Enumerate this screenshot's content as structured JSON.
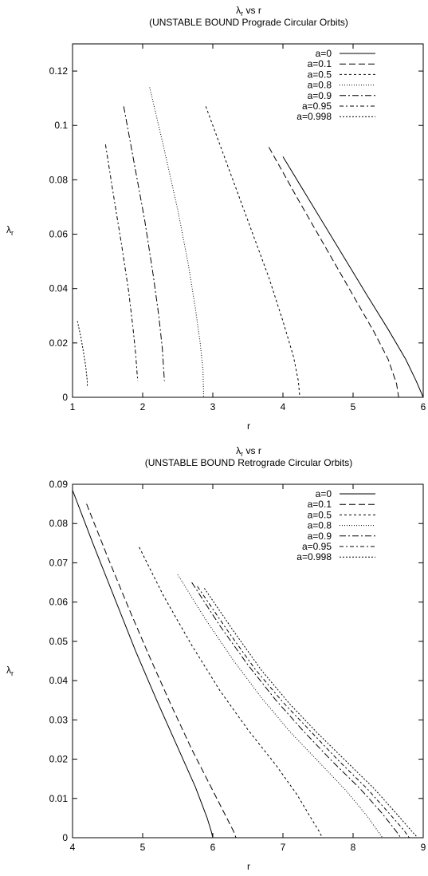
{
  "chart_data": [
    {
      "type": "line",
      "title_main": "λ",
      "title_sub": "r",
      "title_rest": " vs r",
      "subtitle": "(UNSTABLE BOUND Prograde Circular Orbits)",
      "xlabel": "r",
      "ylabel_main": "λ",
      "ylabel_sub": "r",
      "xlim": [
        1,
        6
      ],
      "ylim": [
        0,
        0.13
      ],
      "xticks": [
        1,
        2,
        3,
        4,
        5,
        6
      ],
      "yticks": [
        0,
        0.02,
        0.04,
        0.06,
        0.08,
        0.1,
        0.12
      ],
      "grid": false,
      "legend_position": "top-right",
      "series": [
        {
          "name": "a=0",
          "dash": "solid",
          "x": [
            4.0,
            4.4,
            4.8,
            5.2,
            5.5,
            5.75,
            5.9,
            6.0
          ],
          "y": [
            0.0885,
            0.0715,
            0.0545,
            0.0375,
            0.025,
            0.014,
            0.006,
            0.0
          ]
        },
        {
          "name": "a=0.1",
          "dash": "8,4",
          "x": [
            3.8,
            4.2,
            4.6,
            5.0,
            5.3,
            5.5,
            5.62,
            5.65
          ],
          "y": [
            0.092,
            0.0735,
            0.0555,
            0.0375,
            0.024,
            0.014,
            0.005,
            0.0
          ]
        },
        {
          "name": "a=0.5",
          "dash": "3,3",
          "x": [
            2.9,
            3.2,
            3.5,
            3.8,
            4.0,
            4.15,
            4.22,
            4.24
          ],
          "y": [
            0.107,
            0.086,
            0.065,
            0.044,
            0.028,
            0.015,
            0.006,
            0.0
          ]
        },
        {
          "name": "a=0.8",
          "dash": "1,2",
          "x": [
            2.1,
            2.3,
            2.5,
            2.65,
            2.75,
            2.82,
            2.86,
            2.87
          ],
          "y": [
            0.114,
            0.092,
            0.069,
            0.049,
            0.033,
            0.02,
            0.01,
            0.0
          ]
        },
        {
          "name": "a=0.9",
          "dash": "8,3,2,3",
          "x": [
            1.73,
            1.88,
            2.03,
            2.15,
            2.23,
            2.28,
            2.3,
            2.31
          ],
          "y": [
            0.107,
            0.086,
            0.065,
            0.045,
            0.03,
            0.018,
            0.01,
            0.006
          ]
        },
        {
          "name": "a=0.95",
          "dash": "5,3,2,3",
          "x": [
            1.47,
            1.58,
            1.7,
            1.8,
            1.86,
            1.9,
            1.92,
            1.93
          ],
          "y": [
            0.093,
            0.075,
            0.056,
            0.039,
            0.026,
            0.016,
            0.009,
            0.006
          ]
        },
        {
          "name": "a=0.998",
          "dash": "2,2",
          "x": [
            1.07,
            1.12,
            1.16,
            1.19,
            1.21,
            1.21
          ],
          "y": [
            0.028,
            0.022,
            0.016,
            0.011,
            0.006,
            0.004
          ]
        }
      ]
    },
    {
      "type": "line",
      "title_main": "λ",
      "title_sub": "r",
      "title_rest": " vs r",
      "subtitle": "(UNSTABLE BOUND Retrograde Circular Orbits)",
      "xlabel": "r",
      "ylabel_main": "λ",
      "ylabel_sub": "r",
      "xlim": [
        4,
        9
      ],
      "ylim": [
        0,
        0.09
      ],
      "xticks": [
        4,
        5,
        6,
        7,
        8,
        9
      ],
      "yticks": [
        0,
        0.01,
        0.02,
        0.03,
        0.04,
        0.05,
        0.06,
        0.07,
        0.08,
        0.09
      ],
      "grid": false,
      "legend_position": "top-right",
      "series": [
        {
          "name": "a=0",
          "dash": "solid",
          "x": [
            4.0,
            4.3,
            4.6,
            4.9,
            5.2,
            5.5,
            5.75,
            5.92,
            5.98,
            6.0
          ],
          "y": [
            0.0885,
            0.0745,
            0.061,
            0.0475,
            0.035,
            0.023,
            0.013,
            0.005,
            0.0015,
            0.0
          ]
        },
        {
          "name": "a=0.1",
          "dash": "8,4",
          "x": [
            4.2,
            4.5,
            4.8,
            5.1,
            5.4,
            5.7,
            6.0,
            6.2,
            6.3,
            6.33
          ],
          "y": [
            0.085,
            0.0715,
            0.0585,
            0.046,
            0.034,
            0.0225,
            0.012,
            0.005,
            0.0015,
            0.0
          ]
        },
        {
          "name": "a=0.5",
          "dash": "3,3",
          "x": [
            4.95,
            5.3,
            5.7,
            6.1,
            6.5,
            6.9,
            7.2,
            7.4,
            7.52,
            7.56
          ],
          "y": [
            0.074,
            0.0615,
            0.049,
            0.0375,
            0.0275,
            0.0185,
            0.011,
            0.005,
            0.0015,
            0.0
          ]
        },
        {
          "name": "a=0.8",
          "dash": "1,2",
          "x": [
            5.5,
            5.9,
            6.3,
            6.7,
            7.1,
            7.5,
            7.9,
            8.2,
            8.36,
            8.42
          ],
          "y": [
            0.067,
            0.0555,
            0.045,
            0.0355,
            0.027,
            0.0195,
            0.012,
            0.0055,
            0.0015,
            0.0
          ]
        },
        {
          "name": "a=0.9",
          "dash": "8,3,2,3",
          "x": [
            5.7,
            6.1,
            6.5,
            6.9,
            7.3,
            7.7,
            8.1,
            8.4,
            8.6,
            8.68
          ],
          "y": [
            0.065,
            0.054,
            0.044,
            0.035,
            0.027,
            0.0195,
            0.0125,
            0.0065,
            0.002,
            0.0
          ]
        },
        {
          "name": "a=0.95",
          "dash": "5,3,2,3",
          "x": [
            5.78,
            6.2,
            6.6,
            7.0,
            7.4,
            7.8,
            8.2,
            8.5,
            8.72,
            8.8
          ],
          "y": [
            0.064,
            0.053,
            0.043,
            0.0345,
            0.027,
            0.0195,
            0.0125,
            0.0065,
            0.002,
            0.0
          ]
        },
        {
          "name": "a=0.998",
          "dash": "2,2",
          "x": [
            5.88,
            6.3,
            6.7,
            7.1,
            7.5,
            7.9,
            8.3,
            8.6,
            8.82,
            8.92
          ],
          "y": [
            0.0635,
            0.0525,
            0.0425,
            0.034,
            0.0265,
            0.0195,
            0.0125,
            0.0065,
            0.002,
            0.0
          ]
        }
      ]
    }
  ]
}
